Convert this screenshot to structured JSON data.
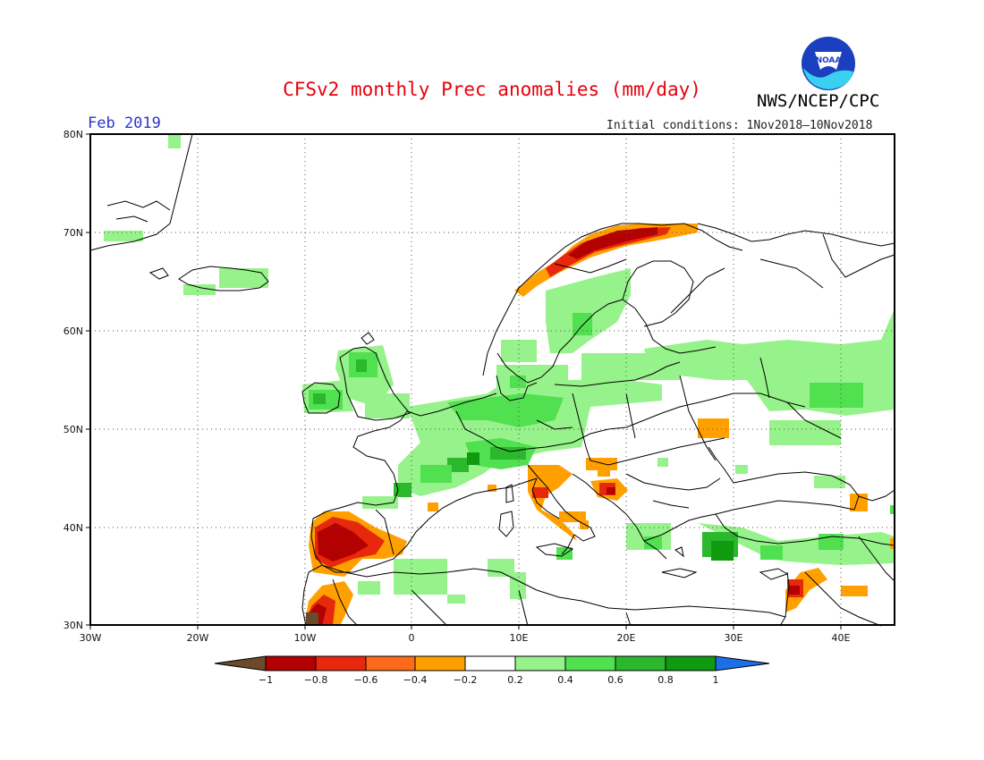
{
  "title": "CFSv2 monthly Prec anomalies (mm/day)",
  "organization": "NWS/NCEP/CPC",
  "logo_text": "NOAA",
  "month": "Feb 2019",
  "initial_conditions": "Initial conditions: 1Nov2018–10Nov2018",
  "lat_labels": [
    "80N",
    "70N",
    "60N",
    "50N",
    "40N",
    "30N"
  ],
  "lon_labels": [
    "30W",
    "20W",
    "10W",
    "0",
    "10E",
    "20E",
    "30E",
    "40E"
  ],
  "colorbar": {
    "labels": [
      "−1",
      "−0.8",
      "−0.6",
      "−0.4",
      "−0.2",
      "0.2",
      "0.4",
      "0.6",
      "0.8",
      "1"
    ],
    "colors": [
      "#6b4a2b",
      "#b30000",
      "#e8280c",
      "#ff6a1a",
      "#ffa000",
      "#ffffff",
      "#96f28a",
      "#50e050",
      "#2cb82c",
      "#0f9a0f",
      "#1e6ee8"
    ]
  },
  "map": {
    "projection": "lat-lon",
    "lon_range": [
      -30,
      45
    ],
    "lat_range": [
      30,
      80
    ],
    "grid": "dotted every 10 degrees",
    "anomaly_regions": [
      {
        "area": "Western Norway coast",
        "class": "-0.8 to -0.4",
        "color": "#b30000"
      },
      {
        "area": "Iberian Peninsula (west/south)",
        "class": "-0.8 to -0.4",
        "color": "#b30000"
      },
      {
        "area": "Morocco coast",
        "class": "-1 to -0.6",
        "color": "#b30000"
      },
      {
        "area": "Italy / Adriatic",
        "class": "-0.4 to -0.2",
        "color": "#ffa000"
      },
      {
        "area": "Levant coast",
        "class": "-0.6 to -0.4",
        "color": "#e8280c"
      },
      {
        "area": "Ukraine spot",
        "class": "-0.4 to -0.2",
        "color": "#ffa000"
      },
      {
        "area": "Ireland / UK",
        "class": "0.2 to 0.6",
        "color": "#50e050"
      },
      {
        "area": "Central Europe / Alps",
        "class": "0.2 to 0.8",
        "color": "#2cb82c"
      },
      {
        "area": "Scandinavia interior",
        "class": "0.2 to 0.4",
        "color": "#96f28a"
      },
      {
        "area": "Western Russia",
        "class": "0.2 to 0.6",
        "color": "#96f28a"
      },
      {
        "area": "Turkey south coast",
        "class": "0.4 to 1",
        "color": "#0f9a0f"
      }
    ]
  }
}
